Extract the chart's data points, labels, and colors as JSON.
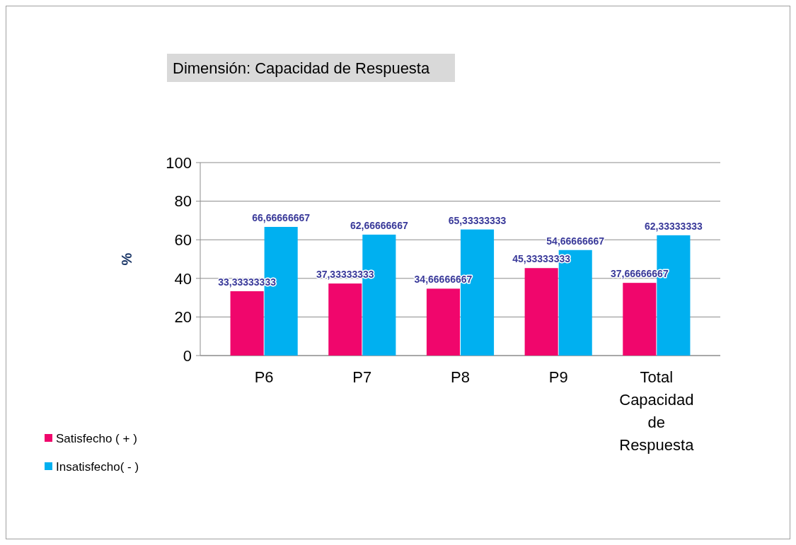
{
  "chart_data": {
    "type": "bar",
    "title": "Dimensión: Capacidad de Respuesta",
    "ylabel": "%",
    "categories": [
      "P6",
      "P7",
      "P8",
      "P9",
      "Total Capacidad de Respuesta"
    ],
    "series": [
      {
        "name": "Satisfecho ( + )",
        "color": "#f0066c",
        "values": [
          33.33333333,
          37.33333333,
          34.66666667,
          45.33333333,
          37.66666667
        ],
        "value_labels": [
          "33,33333333",
          "37,33333333",
          "34,66666667",
          "45,33333333",
          "37,66666667"
        ]
      },
      {
        "name": "Insatisfecho( - )",
        "color": "#00b0f0",
        "values": [
          66.66666667,
          62.66666667,
          65.33333333,
          54.66666667,
          62.33333333
        ],
        "value_labels": [
          "66,66666667",
          "62,66666667",
          "65,33333333",
          "54,66666667",
          "62,33333333"
        ]
      }
    ],
    "ylim": [
      0,
      100
    ],
    "yticks": [
      0,
      20,
      40,
      60,
      80,
      100
    ],
    "grid": "y",
    "legend": "bottom left"
  }
}
